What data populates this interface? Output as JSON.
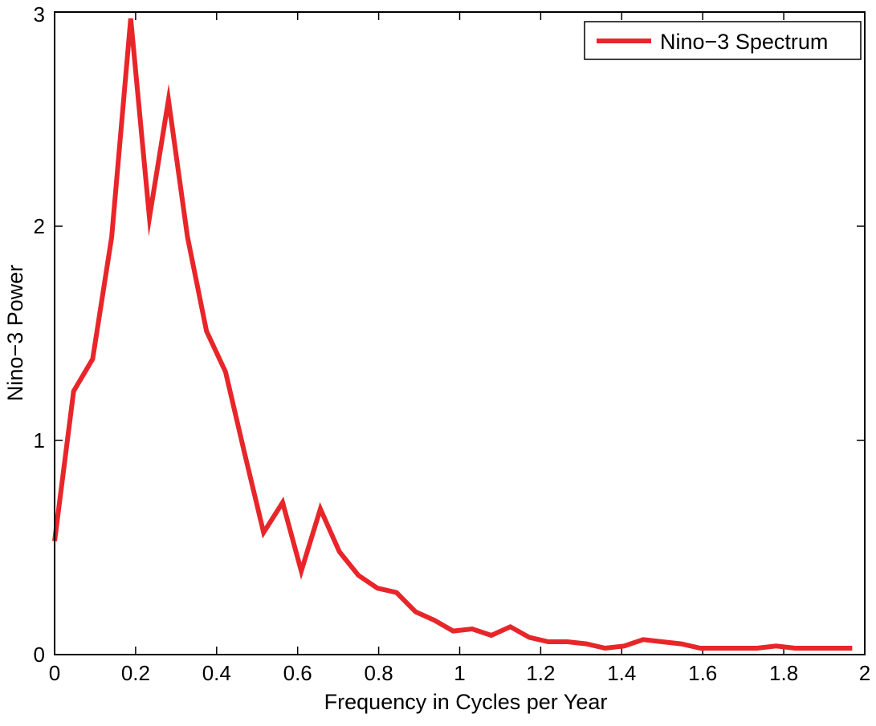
{
  "chart_data": {
    "type": "line",
    "title": "",
    "xlabel": "Frequency in Cycles per Year",
    "ylabel": "Nino−3 Power",
    "xlim": [
      0,
      2
    ],
    "ylim": [
      0,
      3
    ],
    "xticks": [
      0,
      0.2,
      0.4,
      0.6,
      0.8,
      1,
      1.2,
      1.4,
      1.6,
      1.8,
      2
    ],
    "xtick_labels": [
      "0",
      "0.2",
      "0.4",
      "0.6",
      "0.8",
      "1",
      "1.2",
      "1.4",
      "1.6",
      "1.8",
      "2"
    ],
    "yticks": [
      0,
      1,
      2,
      3
    ],
    "ytick_labels": [
      "0",
      "1",
      "2",
      "3"
    ],
    "grid": false,
    "legend_position": "top-right",
    "series": [
      {
        "name": "Nino−3 Spectrum",
        "color": "#e8262a",
        "x": [
          0.0,
          0.047,
          0.094,
          0.141,
          0.188,
          0.234,
          0.281,
          0.328,
          0.375,
          0.422,
          0.469,
          0.516,
          0.563,
          0.609,
          0.656,
          0.703,
          0.75,
          0.797,
          0.844,
          0.891,
          0.938,
          0.984,
          1.031,
          1.078,
          1.125,
          1.172,
          1.219,
          1.266,
          1.313,
          1.359,
          1.406,
          1.453,
          1.5,
          1.547,
          1.594,
          1.641,
          1.688,
          1.734,
          1.781,
          1.828,
          1.875,
          1.922,
          1.969
        ],
        "y": [
          0.53,
          1.23,
          1.38,
          1.95,
          2.97,
          2.04,
          2.59,
          1.95,
          1.51,
          1.32,
          0.94,
          0.57,
          0.71,
          0.39,
          0.68,
          0.48,
          0.37,
          0.31,
          0.29,
          0.2,
          0.16,
          0.11,
          0.12,
          0.09,
          0.13,
          0.08,
          0.06,
          0.06,
          0.05,
          0.03,
          0.04,
          0.07,
          0.06,
          0.05,
          0.03,
          0.03,
          0.03,
          0.03,
          0.04,
          0.03,
          0.03,
          0.03,
          0.03
        ]
      }
    ]
  }
}
